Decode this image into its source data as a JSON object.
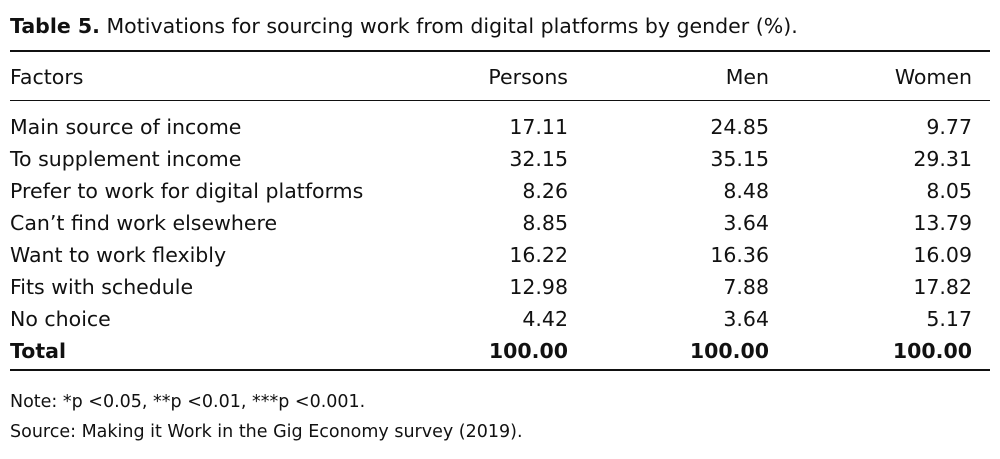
{
  "caption": {
    "label": "Table 5.",
    "text": "Motivations for sourcing work from digital platforms by gender (%)."
  },
  "table": {
    "headers": [
      "Factors",
      "Persons",
      "Men",
      "Women"
    ],
    "rows": [
      [
        "Main source of income",
        "17.11",
        "24.85",
        "9.77"
      ],
      [
        "To supplement income",
        "32.15",
        "35.15",
        "29.31"
      ],
      [
        "Prefer to work for digital platforms",
        "8.26",
        "8.48",
        "8.05"
      ],
      [
        "Can’t find work elsewhere",
        "8.85",
        "3.64",
        "13.79"
      ],
      [
        "Want to work flexibly",
        "16.22",
        "16.36",
        "16.09"
      ],
      [
        "Fits with schedule",
        "12.98",
        "7.88",
        "17.82"
      ],
      [
        "No choice",
        "4.42",
        "3.64",
        "5.17"
      ]
    ],
    "total": [
      "Total",
      "100.00",
      "100.00",
      "100.00"
    ]
  },
  "notes": {
    "note": "Note: *p <0.05, **p <0.01, ***p <0.001.",
    "source": "Source: Making it Work in the Gig Economy survey (2019)."
  }
}
